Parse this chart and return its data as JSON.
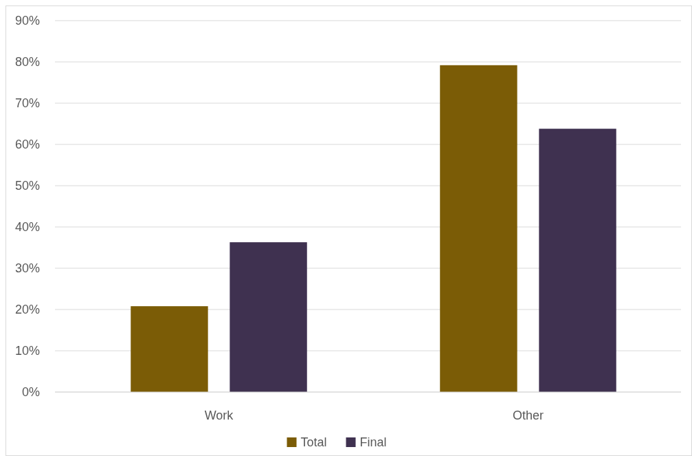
{
  "chart_data": {
    "type": "bar",
    "categories": [
      "Work",
      "Other"
    ],
    "series": [
      {
        "name": "Total",
        "color": "#7b5c06",
        "values": [
          20.8,
          79.2
        ]
      },
      {
        "name": "Final",
        "color": "#3f3150",
        "values": [
          36.3,
          63.8
        ]
      }
    ],
    "ylim": [
      0,
      90
    ],
    "yticks": [
      {
        "value": 0,
        "label": "0%"
      },
      {
        "value": 10,
        "label": "10%"
      },
      {
        "value": 20,
        "label": "20%"
      },
      {
        "value": 30,
        "label": "30%"
      },
      {
        "value": 40,
        "label": "40%"
      },
      {
        "value": 50,
        "label": "50%"
      },
      {
        "value": 60,
        "label": "60%"
      },
      {
        "value": 70,
        "label": "70%"
      },
      {
        "value": 80,
        "label": "80%"
      },
      {
        "value": 90,
        "label": "90%"
      }
    ],
    "grid": "y",
    "legend": "bottom"
  }
}
